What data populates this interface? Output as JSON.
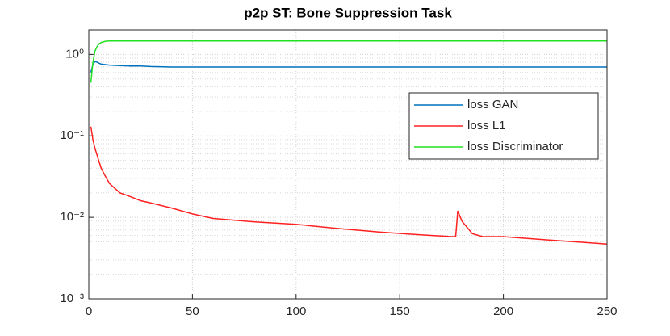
{
  "chart_data": {
    "type": "line",
    "title": "p2p ST: Bone Suppression Task",
    "x": [
      1,
      2,
      3,
      4,
      5,
      6,
      8,
      10,
      15,
      20,
      25,
      30,
      40,
      50,
      60,
      80,
      100,
      120,
      140,
      160,
      175,
      177,
      178,
      180,
      185,
      190,
      200,
      220,
      240,
      250
    ],
    "series": [
      {
        "name": "loss GAN",
        "color": "#0072bd",
        "values": [
          0.6,
          0.75,
          0.82,
          0.8,
          0.78,
          0.76,
          0.75,
          0.74,
          0.73,
          0.72,
          0.72,
          0.71,
          0.7,
          0.7,
          0.7,
          0.7,
          0.7,
          0.7,
          0.7,
          0.7,
          0.7,
          0.7,
          0.7,
          0.7,
          0.7,
          0.7,
          0.7,
          0.7,
          0.7,
          0.7
        ]
      },
      {
        "name": "loss L1",
        "color": "#ff2020",
        "values": [
          0.13,
          0.09,
          0.07,
          0.058,
          0.048,
          0.04,
          0.032,
          0.026,
          0.02,
          0.018,
          0.016,
          0.015,
          0.013,
          0.011,
          0.0097,
          0.0088,
          0.0082,
          0.0073,
          0.0066,
          0.0061,
          0.0058,
          0.0058,
          0.012,
          0.009,
          0.0063,
          0.0058,
          0.0058,
          0.0053,
          0.0049,
          0.0047
        ]
      },
      {
        "name": "loss Discriminator",
        "color": "#20e020",
        "values": [
          0.45,
          0.8,
          1.1,
          1.25,
          1.35,
          1.4,
          1.45,
          1.46,
          1.46,
          1.46,
          1.46,
          1.46,
          1.46,
          1.46,
          1.46,
          1.46,
          1.46,
          1.46,
          1.46,
          1.46,
          1.46,
          1.46,
          1.46,
          1.46,
          1.46,
          1.46,
          1.46,
          1.46,
          1.46,
          1.46
        ]
      }
    ],
    "xlim": [
      0,
      250
    ],
    "xticks": [
      0,
      50,
      100,
      150,
      200,
      250
    ],
    "ylim": [
      0.001,
      2
    ],
    "log_y": true,
    "yticks": [
      {
        "value": 0.001,
        "label": "10⁻³"
      },
      {
        "value": 0.01,
        "label": "10⁻²"
      },
      {
        "value": 0.1,
        "label": "10⁻¹"
      },
      {
        "value": 1,
        "label": "10⁰"
      }
    ],
    "grid": true,
    "minor_grid": true,
    "legend": "northeast"
  }
}
